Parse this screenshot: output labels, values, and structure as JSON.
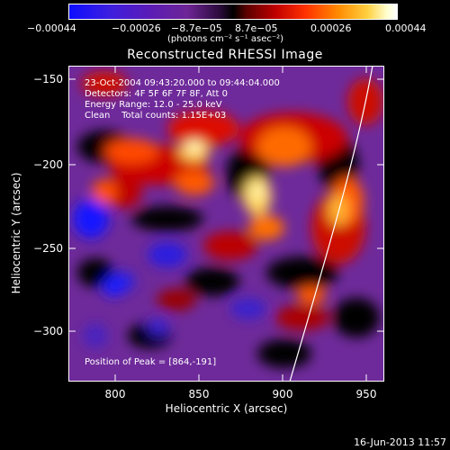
{
  "colorbar": {
    "tick_labels": [
      "−0.00044",
      "−0.00026",
      "−8.7e−05",
      "8.7e−05",
      "0.00026",
      "0.00044"
    ],
    "units": "(photons cm⁻² s⁻¹ asec⁻²)",
    "colors": [
      "#1010ff",
      "#5a1bb8",
      "#7a2b8f",
      "#000000",
      "#9a0000",
      "#ff2000",
      "#ff9a00",
      "#ffff80",
      "#ffffff"
    ]
  },
  "image": {
    "title": "Reconstructed RHESSI Image",
    "info_lines": [
      "23-Oct-2004 09:43:20.000 to 09:44:04.000",
      "Detectors: 4F 5F 6F 7F 8F, Att 0",
      "Energy Range: 12.0 - 25.0 keV",
      "Clean    Total counts: 1.15E+03"
    ],
    "peak_label": "Position of Peak = [864,-191]",
    "x_label": "Heliocentric X (arcsec)",
    "y_label": "Heliocentric Y (arcsec)",
    "x_ticks": [
      "800",
      "850",
      "900",
      "950"
    ],
    "y_ticks": [
      "−150",
      "−200",
      "−250",
      "−300"
    ],
    "timestamp": "16-Jun-2013 11:57"
  }
}
